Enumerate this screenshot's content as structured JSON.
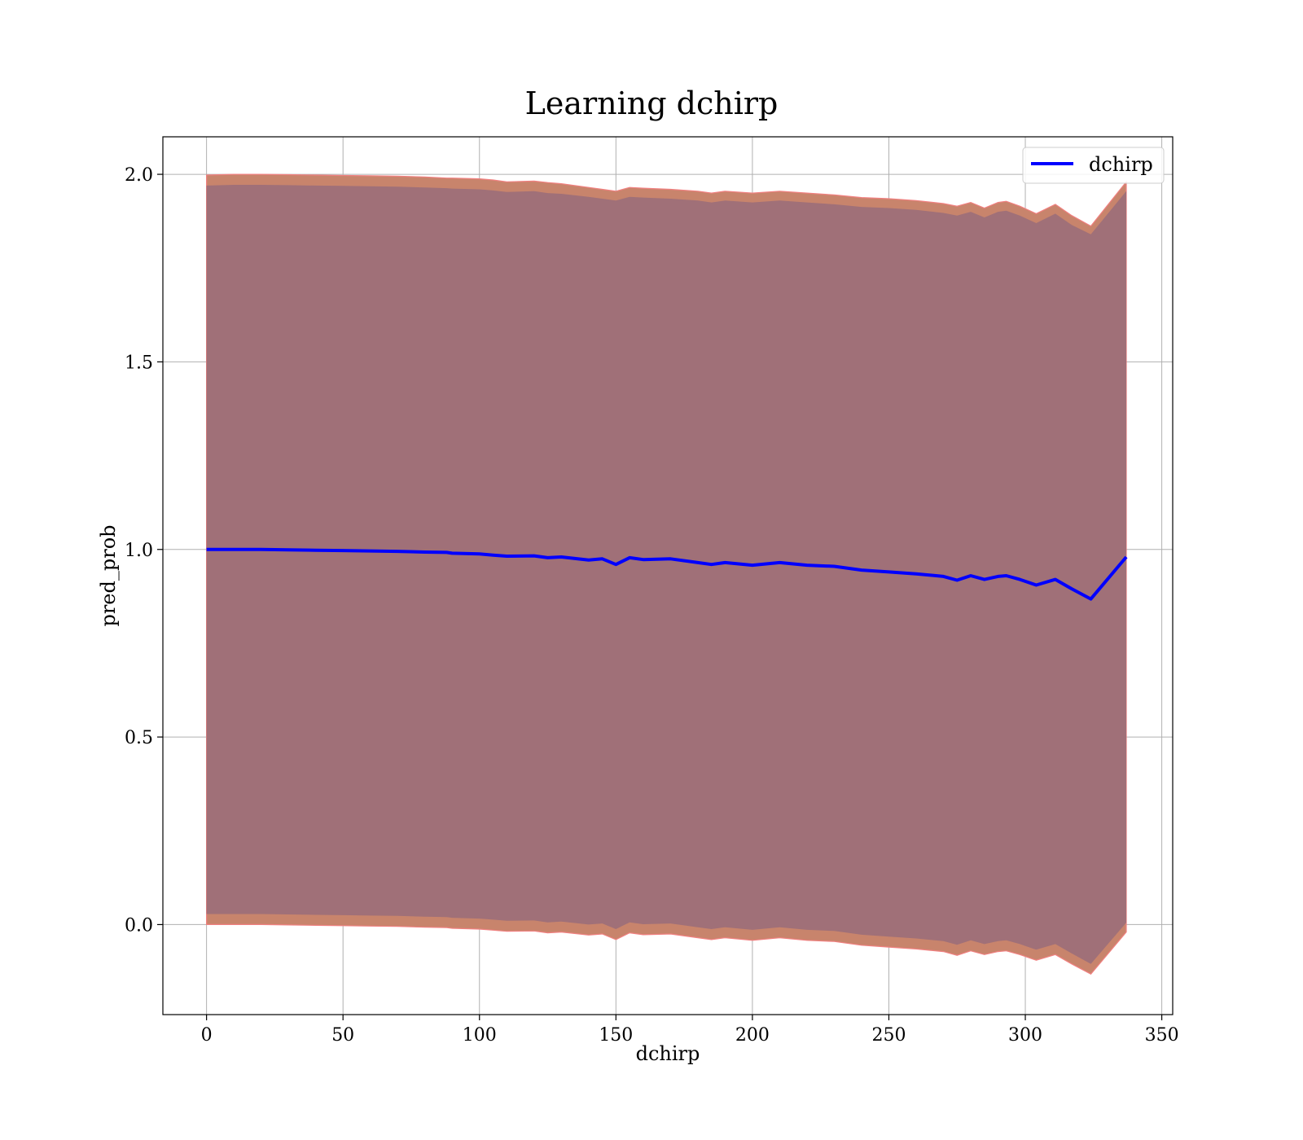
{
  "chart_data": {
    "type": "line",
    "title": "Learning dchirp",
    "xlabel": "dchirp",
    "ylabel": "pred_prob",
    "xlim": [
      -16,
      354
    ],
    "ylim": [
      -0.24,
      2.1
    ],
    "x_ticks": [
      0,
      50,
      100,
      150,
      200,
      250,
      300,
      350
    ],
    "y_ticks": [
      0.0,
      0.5,
      1.0,
      1.5,
      2.0
    ],
    "grid": true,
    "legend_position": "top-right",
    "colors": {
      "line": "#0000ff",
      "outer_band": "#c8846c",
      "outer_band_edge": "#f08080",
      "inner_band": "#a07078",
      "grid": "#b0b0b0"
    },
    "series": [
      {
        "name": "dchirp",
        "x": [
          0,
          10,
          20,
          30,
          40,
          50,
          60,
          70,
          80,
          88,
          90,
          100,
          105,
          110,
          120,
          125,
          130,
          140,
          145,
          150,
          155,
          160,
          170,
          180,
          185,
          190,
          200,
          210,
          220,
          230,
          240,
          250,
          260,
          270,
          275,
          280,
          285,
          290,
          293,
          298,
          304,
          311,
          317,
          324,
          337
        ],
        "y": [
          1.0,
          1.0,
          1.0,
          0.999,
          0.998,
          0.997,
          0.996,
          0.995,
          0.993,
          0.992,
          0.99,
          0.988,
          0.985,
          0.982,
          0.983,
          0.978,
          0.98,
          0.972,
          0.975,
          0.96,
          0.978,
          0.973,
          0.975,
          0.965,
          0.96,
          0.965,
          0.958,
          0.965,
          0.958,
          0.955,
          0.945,
          0.94,
          0.935,
          0.928,
          0.918,
          0.93,
          0.92,
          0.928,
          0.93,
          0.92,
          0.905,
          0.92,
          0.895,
          0.868,
          0.98
        ]
      }
    ],
    "bands": [
      {
        "upper": [
          1.998,
          2.0,
          2.0,
          1.999,
          1.998,
          1.997,
          1.996,
          1.995,
          1.993,
          1.99,
          1.99,
          1.988,
          1.985,
          1.98,
          1.982,
          1.978,
          1.975,
          1.965,
          1.96,
          1.955,
          1.965,
          1.963,
          1.96,
          1.955,
          1.95,
          1.955,
          1.95,
          1.955,
          1.95,
          1.945,
          1.938,
          1.935,
          1.93,
          1.922,
          1.915,
          1.925,
          1.91,
          1.925,
          1.928,
          1.915,
          1.895,
          1.92,
          1.89,
          1.862,
          1.98
        ],
        "lower": [
          0.0,
          0.0,
          0.0,
          -0.001,
          -0.002,
          -0.003,
          -0.004,
          -0.005,
          -0.007,
          -0.008,
          -0.01,
          -0.012,
          -0.015,
          -0.018,
          -0.017,
          -0.022,
          -0.02,
          -0.028,
          -0.025,
          -0.04,
          -0.022,
          -0.027,
          -0.025,
          -0.035,
          -0.04,
          -0.035,
          -0.042,
          -0.035,
          -0.042,
          -0.045,
          -0.055,
          -0.06,
          -0.065,
          -0.072,
          -0.082,
          -0.07,
          -0.08,
          -0.072,
          -0.07,
          -0.08,
          -0.095,
          -0.08,
          -0.105,
          -0.132,
          -0.02
        ]
      },
      {
        "upper": [
          1.97,
          1.972,
          1.972,
          1.971,
          1.97,
          1.969,
          1.968,
          1.967,
          1.965,
          1.963,
          1.962,
          1.96,
          1.957,
          1.953,
          1.955,
          1.95,
          1.948,
          1.94,
          1.935,
          1.93,
          1.94,
          1.938,
          1.935,
          1.93,
          1.925,
          1.93,
          1.925,
          1.93,
          1.925,
          1.92,
          1.913,
          1.91,
          1.905,
          1.897,
          1.89,
          1.9,
          1.885,
          1.9,
          1.903,
          1.89,
          1.87,
          1.895,
          1.865,
          1.84,
          1.955
        ],
        "lower": [
          0.028,
          0.028,
          0.028,
          0.027,
          0.026,
          0.025,
          0.024,
          0.023,
          0.021,
          0.02,
          0.018,
          0.016,
          0.013,
          0.01,
          0.011,
          0.006,
          0.008,
          0.0,
          0.003,
          -0.012,
          0.006,
          0.001,
          0.003,
          -0.007,
          -0.012,
          -0.007,
          -0.014,
          -0.007,
          -0.014,
          -0.017,
          -0.027,
          -0.032,
          -0.037,
          -0.044,
          -0.054,
          -0.042,
          -0.052,
          -0.044,
          -0.042,
          -0.052,
          -0.067,
          -0.052,
          -0.077,
          -0.105,
          0.005
        ]
      }
    ]
  }
}
